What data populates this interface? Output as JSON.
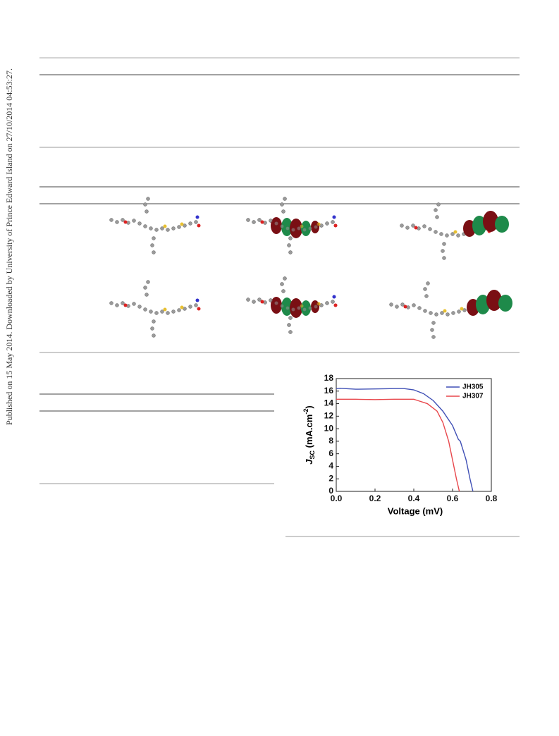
{
  "side_note": "Published on 15 May 2014. Downloaded by University of Prince Edward Island on 27/10/2014 04:53:27.",
  "chart_data": {
    "type": "line",
    "xlabel": "Voltage (mV)",
    "ylabel": {
      "main": "J",
      "sub": "SC",
      "unit": " (mA.cm",
      "sup": "-2",
      "end": ")"
    },
    "xlim": [
      0,
      0.8
    ],
    "xticks": [
      {
        "value": 0,
        "label": "0.0"
      },
      {
        "value": 0.2,
        "label": "0.2"
      },
      {
        "value": 0.4,
        "label": "0.4"
      },
      {
        "value": 0.6,
        "label": "0.6"
      },
      {
        "value": 0.8,
        "label": "0.8"
      }
    ],
    "ylim": [
      0,
      18
    ],
    "yticks": [
      0,
      2,
      4,
      6,
      8,
      10,
      12,
      14,
      16,
      18
    ],
    "legend": "upper-right",
    "series": [
      {
        "name": "JH305",
        "color": "#3f4fb5",
        "x": [
          0,
          0.02,
          0.1,
          0.2,
          0.3,
          0.35,
          0.4,
          0.45,
          0.5,
          0.55,
          0.6,
          0.63,
          0.64,
          0.67,
          0.69,
          0.705
        ],
        "values": [
          16.4,
          16.45,
          16.3,
          16.35,
          16.4,
          16.4,
          16.2,
          15.6,
          14.5,
          12.8,
          10.5,
          8.3,
          8.0,
          5.0,
          2.0,
          0
        ]
      },
      {
        "name": "JH307",
        "color": "#e8474c",
        "x": [
          0,
          0.1,
          0.2,
          0.3,
          0.4,
          0.42,
          0.47,
          0.52,
          0.55,
          0.58,
          0.6,
          0.62,
          0.635
        ],
        "values": [
          14.7,
          14.7,
          14.65,
          14.7,
          14.7,
          14.5,
          14.0,
          12.8,
          11.0,
          8.0,
          5.0,
          2.0,
          0
        ]
      }
    ]
  }
}
